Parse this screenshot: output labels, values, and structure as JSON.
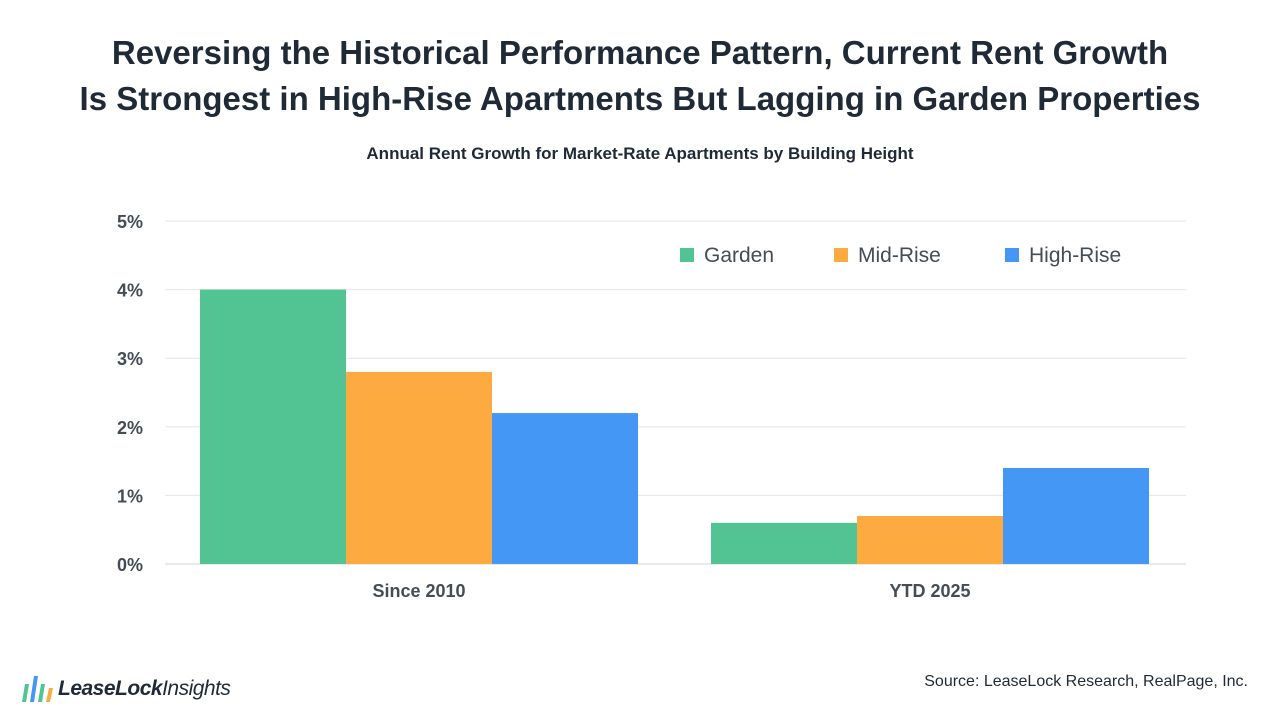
{
  "header": {
    "title_line1": "Reversing the Historical Performance Pattern, Current Rent Growth",
    "title_line2": "Is Strongest in High-Rise Apartments But Lagging in Garden Properties",
    "subtitle": "Annual Rent Growth for Market-Rate Apartments by Building Height"
  },
  "chart_data": {
    "type": "bar",
    "categories": [
      "Since 2010",
      "YTD 2025"
    ],
    "series": [
      {
        "name": "Garden",
        "values": [
          4.0,
          0.6
        ],
        "color": "#52c393"
      },
      {
        "name": "Mid-Rise",
        "values": [
          2.8,
          0.7
        ],
        "color": "#fdab40"
      },
      {
        "name": "High-Rise",
        "values": [
          2.2,
          1.4
        ],
        "color": "#4497f5"
      }
    ],
    "ylim": [
      0,
      5
    ],
    "yticks": [
      {
        "value": 0,
        "label": "0%"
      },
      {
        "value": 1,
        "label": "1%"
      },
      {
        "value": 2,
        "label": "2%"
      },
      {
        "value": 3,
        "label": "3%"
      },
      {
        "value": 4,
        "label": "4%"
      },
      {
        "value": 5,
        "label": "5%"
      }
    ],
    "grid": true,
    "legend": "top-right"
  },
  "footer": {
    "source": "Source: LeaseLock Research, RealPage, Inc.",
    "logo_word1": "LeaseLock",
    "logo_word2": "Insights"
  }
}
